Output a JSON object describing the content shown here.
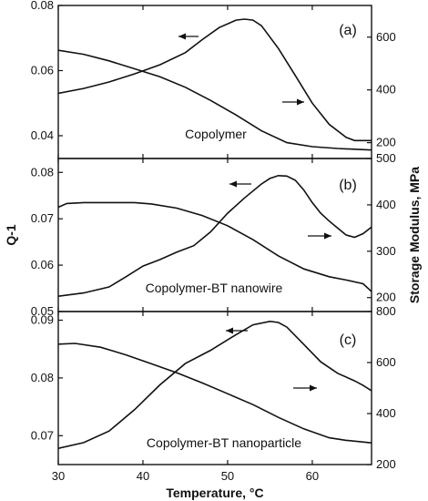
{
  "chart_data": {
    "type": "line",
    "xlabel": "Temperature, °C",
    "ylabel_left": "Q-1",
    "ylabel_right": "Storage Modulus, MPa",
    "xlim": [
      30,
      67
    ],
    "xticks": [
      30,
      40,
      50,
      60
    ],
    "panels": [
      {
        "tag": "(a)",
        "name": "Copolymer",
        "left_lim": [
          0.033,
          0.08
        ],
        "left_ticks": [
          0.04,
          0.06,
          0.08
        ],
        "left_tick_labels": [
          "0.04",
          "0.06",
          "0.08"
        ],
        "right_lim": [
          140,
          720
        ],
        "right_ticks": [
          200,
          400,
          600
        ],
        "right_tick_labels": [
          "200",
          "400",
          "600"
        ],
        "series": [
          {
            "axis": "left",
            "x": [
              30,
              33,
              36,
              39,
              42,
              45,
              47,
              49,
              51,
              52,
              53,
              54,
              56,
              58,
              60,
              62,
              64,
              65,
              66,
              67
            ],
            "y": [
              0.053,
              0.0545,
              0.0565,
              0.059,
              0.0618,
              0.0655,
              0.0695,
              0.0732,
              0.0755,
              0.0758,
              0.0755,
              0.0738,
              0.0668,
              0.0585,
              0.05,
              0.0435,
              0.0395,
              0.0385,
              0.0385,
              0.0385
            ]
          },
          {
            "axis": "right",
            "x": [
              30,
              33,
              36,
              39,
              42,
              45,
              48,
              51,
              54,
              57,
              60,
              63,
              67
            ],
            "y": [
              550,
              535,
              510,
              480,
              450,
              410,
              360,
              305,
              245,
              200,
              185,
              178,
              172
            ]
          }
        ]
      },
      {
        "tag": "(b)",
        "name": "Copolymer-BT nanowire",
        "left_lim": [
          0.05,
          0.083
        ],
        "left_ticks": [
          0.05,
          0.06,
          0.07,
          0.08
        ],
        "left_tick_labels": [
          "0.05",
          "0.06",
          "0.07",
          "0.08"
        ],
        "right_lim": [
          170,
          500
        ],
        "right_ticks": [
          200,
          300,
          400,
          500
        ],
        "right_tick_labels": [
          "200",
          "300",
          "400",
          "500"
        ],
        "series": [
          {
            "axis": "left",
            "x": [
              30,
              33,
              36,
              38,
              40,
              42,
              44,
              46,
              48,
              50,
              52,
              54,
              55,
              56,
              57,
              58,
              59,
              60,
              61,
              62,
              63,
              64,
              65,
              66,
              67
            ],
            "y": [
              0.0533,
              0.054,
              0.0553,
              0.0575,
              0.0598,
              0.0612,
              0.0628,
              0.0642,
              0.0672,
              0.0712,
              0.0745,
              0.0775,
              0.0787,
              0.0793,
              0.0792,
              0.0783,
              0.0762,
              0.0735,
              0.0712,
              0.0695,
              0.068,
              0.0665,
              0.066,
              0.0668,
              0.0682
            ]
          },
          {
            "axis": "right",
            "x": [
              30,
              31,
              33,
              36,
              39,
              41,
              44,
              47,
              50,
              53,
              56,
              59,
              62,
              64,
              66,
              67
            ],
            "y": [
              395,
              403,
              405,
              405,
              405,
              402,
              393,
              377,
              355,
              325,
              290,
              262,
              245,
              238,
              230,
              213
            ]
          }
        ]
      },
      {
        "tag": "(c)",
        "name": "Copolymer-BT nanoparticle",
        "left_lim": [
          0.065,
          0.0915
        ],
        "left_ticks": [
          0.07,
          0.08,
          0.09
        ],
        "left_tick_labels": [
          "0.07",
          "0.08",
          "0.09"
        ],
        "right_lim": [
          200,
          800
        ],
        "right_ticks": [
          200,
          400,
          600,
          800
        ],
        "right_tick_labels": [
          "200",
          "400",
          "600",
          "800"
        ],
        "series": [
          {
            "axis": "left",
            "x": [
              30,
              33,
              36,
              39,
              42,
              45,
              48,
              51,
              53,
              55,
              56,
              57,
              59,
              61,
              63,
              65,
              66,
              67
            ],
            "y": [
              0.0678,
              0.0688,
              0.0708,
              0.0745,
              0.0788,
              0.0825,
              0.0848,
              0.0875,
              0.0892,
              0.0898,
              0.0896,
              0.0888,
              0.0858,
              0.0828,
              0.0808,
              0.0795,
              0.0787,
              0.0778
            ]
          },
          {
            "axis": "right",
            "x": [
              30,
              32,
              35,
              38,
              41,
              44,
              47,
              50,
              53,
              56,
              59,
              62,
              64,
              67
            ],
            "y": [
              672,
              675,
              660,
              630,
              595,
              560,
              520,
              478,
              435,
              385,
              340,
              305,
              295,
              285
            ]
          }
        ]
      }
    ]
  }
}
